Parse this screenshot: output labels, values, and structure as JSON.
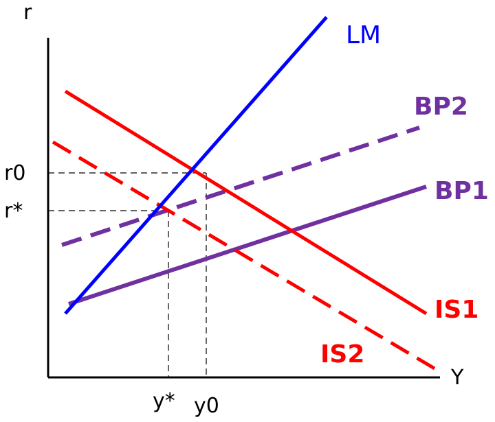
{
  "axes": {
    "y_label": "r",
    "x_label": "Y",
    "y_ticks": [
      "r0",
      "r*"
    ],
    "x_ticks": [
      "y*",
      "y0"
    ]
  },
  "curves": {
    "lm": {
      "label": "LM",
      "color": "#0000ff",
      "style": "solid"
    },
    "is1": {
      "label": "IS1",
      "color": "#ff0000",
      "style": "solid"
    },
    "is2": {
      "label": "IS2",
      "color": "#ff0000",
      "style": "dashed"
    },
    "bp1": {
      "label": "BP1",
      "color": "#7030a0",
      "style": "solid"
    },
    "bp2": {
      "label": "BP2",
      "color": "#7030a0",
      "style": "dashed"
    }
  }
}
